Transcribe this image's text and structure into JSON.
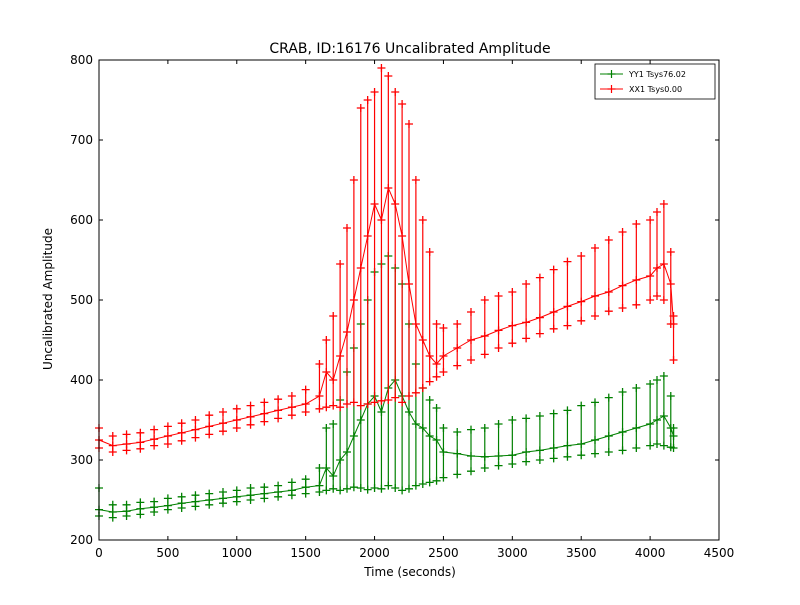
{
  "chart_data": {
    "type": "line",
    "title": "CRAB, ID:16176 Uncalibrated Amplitude",
    "xlabel": "Time (seconds)",
    "ylabel": "Uncalibrated Amplitude",
    "xlim": [
      0,
      4500
    ],
    "ylim": [
      200,
      800
    ],
    "x_ticks": [
      0,
      500,
      1000,
      1500,
      2000,
      2500,
      3000,
      3500,
      4000,
      4500
    ],
    "y_ticks": [
      200,
      300,
      400,
      500,
      600,
      700,
      800
    ],
    "grid": false,
    "legend_position": "top-right",
    "marker": "plus",
    "series": [
      {
        "name": "YY1 Tsys76.02",
        "color": "#008000",
        "x": [
          0,
          100,
          200,
          300,
          400,
          500,
          600,
          700,
          800,
          900,
          1000,
          1100,
          1200,
          1300,
          1400,
          1500,
          1600,
          1650,
          1700,
          1750,
          1800,
          1850,
          1900,
          1950,
          2000,
          2050,
          2100,
          2150,
          2200,
          2250,
          2300,
          2350,
          2400,
          2450,
          2500,
          2600,
          2700,
          2800,
          2900,
          3000,
          3100,
          3200,
          3300,
          3400,
          3500,
          3600,
          3700,
          3800,
          3900,
          4000,
          4050,
          4100,
          4150,
          4170
        ],
        "values": [
          238,
          235,
          236,
          239,
          241,
          243,
          246,
          248,
          250,
          252,
          254,
          256,
          258,
          260,
          262,
          266,
          268,
          290,
          280,
          300,
          310,
          330,
          350,
          370,
          380,
          360,
          390,
          400,
          380,
          360,
          345,
          340,
          330,
          325,
          310,
          308,
          305,
          304,
          305,
          306,
          310,
          312,
          315,
          318,
          320,
          325,
          330,
          335,
          340,
          345,
          350,
          355,
          340,
          330
        ],
        "min_values": [
          230,
          228,
          230,
          232,
          235,
          238,
          240,
          242,
          244,
          246,
          248,
          250,
          252,
          254,
          256,
          258,
          260,
          262,
          264,
          262,
          264,
          266,
          265,
          263,
          265,
          264,
          268,
          265,
          262,
          264,
          268,
          270,
          272,
          274,
          278,
          282,
          286,
          290,
          293,
          295,
          298,
          300,
          302,
          304,
          306,
          308,
          310,
          312,
          315,
          318,
          320,
          318,
          316,
          315
        ],
        "max_values": [
          265,
          244,
          244,
          247,
          248,
          252,
          254,
          256,
          258,
          260,
          262,
          265,
          266,
          268,
          272,
          276,
          290,
          340,
          345,
          375,
          410,
          440,
          470,
          500,
          535,
          545,
          555,
          540,
          520,
          470,
          420,
          390,
          375,
          365,
          340,
          335,
          338,
          340,
          345,
          350,
          352,
          355,
          358,
          362,
          368,
          372,
          378,
          385,
          390,
          395,
          400,
          405,
          380,
          340
        ]
      },
      {
        "name": "XX1 Tsys0.00",
        "color": "#ff0000",
        "x": [
          0,
          100,
          200,
          300,
          400,
          500,
          600,
          700,
          800,
          900,
          1000,
          1100,
          1200,
          1300,
          1400,
          1500,
          1600,
          1650,
          1700,
          1750,
          1800,
          1850,
          1900,
          1950,
          2000,
          2050,
          2100,
          2150,
          2200,
          2250,
          2300,
          2350,
          2400,
          2450,
          2500,
          2600,
          2700,
          2800,
          2900,
          3000,
          3100,
          3200,
          3300,
          3400,
          3500,
          3600,
          3700,
          3800,
          3900,
          4000,
          4050,
          4100,
          4150,
          4170
        ],
        "values": [
          325,
          318,
          320,
          322,
          326,
          330,
          334,
          338,
          342,
          346,
          350,
          354,
          358,
          362,
          366,
          370,
          380,
          410,
          400,
          430,
          460,
          500,
          540,
          580,
          620,
          600,
          640,
          620,
          580,
          520,
          470,
          450,
          430,
          420,
          430,
          440,
          450,
          455,
          462,
          468,
          472,
          478,
          485,
          492,
          498,
          505,
          510,
          518,
          525,
          530,
          540,
          545,
          520,
          470
        ],
        "min_values": [
          315,
          310,
          312,
          314,
          318,
          320,
          324,
          328,
          332,
          336,
          340,
          344,
          348,
          352,
          356,
          360,
          364,
          366,
          368,
          366,
          370,
          372,
          368,
          370,
          372,
          374,
          375,
          378,
          372,
          380,
          384,
          390,
          398,
          404,
          410,
          418,
          425,
          432,
          440,
          446,
          452,
          458,
          464,
          468,
          474,
          480,
          486,
          490,
          494,
          500,
          505,
          500,
          470,
          425
        ],
        "max_values": [
          340,
          330,
          332,
          334,
          338,
          342,
          346,
          350,
          356,
          360,
          364,
          368,
          372,
          376,
          380,
          388,
          420,
          450,
          480,
          545,
          590,
          650,
          740,
          750,
          760,
          790,
          780,
          760,
          745,
          720,
          650,
          600,
          560,
          470,
          465,
          470,
          485,
          500,
          505,
          510,
          520,
          528,
          538,
          548,
          555,
          565,
          575,
          585,
          595,
          600,
          610,
          620,
          560,
          480
        ]
      }
    ]
  }
}
